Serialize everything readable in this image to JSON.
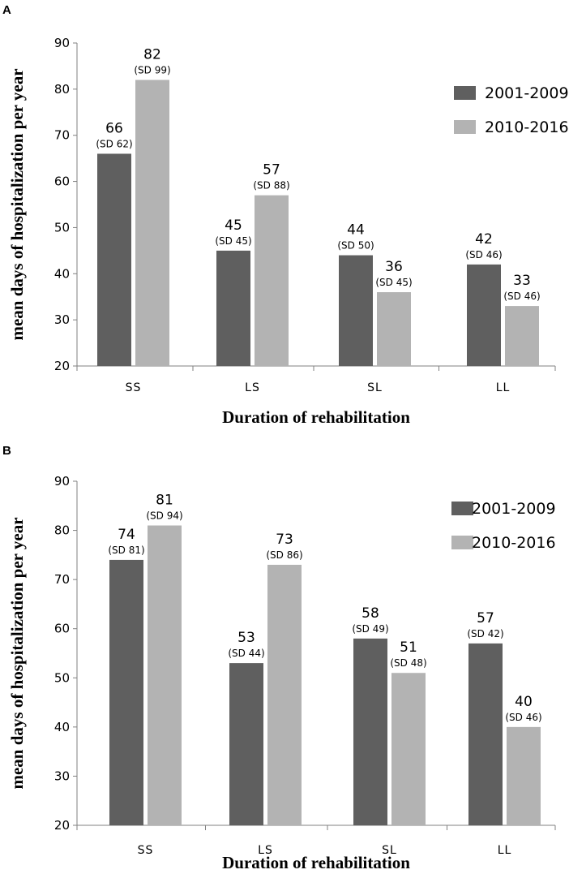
{
  "colors": {
    "series1": "#5f5f5f",
    "series2": "#b3b3b3",
    "axis": "#808080"
  },
  "chart_data": [
    {
      "panel": "A",
      "type": "bar",
      "categories": [
        "SS",
        "LS",
        "SL",
        "LL"
      ],
      "series": [
        {
          "name": "2001-2009",
          "values": [
            66,
            45,
            44,
            42
          ],
          "sd_labels": [
            "(SD 62)",
            "(SD 45)",
            "(SD 50)",
            "(SD 46)"
          ]
        },
        {
          "name": "2010-2016",
          "values": [
            82,
            57,
            36,
            33
          ],
          "sd_labels": [
            "(SD 99)",
            "(SD 88)",
            "(SD 45)",
            "(SD 46)"
          ]
        }
      ],
      "ylim": [
        20,
        90
      ],
      "yticks": [
        20,
        30,
        40,
        50,
        60,
        70,
        80,
        90
      ],
      "xlabel": "Duration of rehabilitation",
      "ylabel": "mean days  of hospitalization  per year",
      "legend": "top-right"
    },
    {
      "panel": "B",
      "type": "bar",
      "categories": [
        "SS",
        "LS",
        "SL",
        "LL"
      ],
      "series": [
        {
          "name": "2001-2009",
          "values": [
            74,
            53,
            58,
            57
          ],
          "sd_labels": [
            "(SD 81)",
            "(SD 44)",
            "(SD 49)",
            "(SD 42)"
          ]
        },
        {
          "name": "2010-2016",
          "values": [
            81,
            73,
            51,
            40
          ],
          "sd_labels": [
            "(SD 94)",
            "(SD 86)",
            "(SD 48)",
            "(SD 46)"
          ]
        }
      ],
      "ylim": [
        20,
        90
      ],
      "yticks": [
        20,
        30,
        40,
        50,
        60,
        70,
        80,
        90
      ],
      "xlabel": "Duration of rehabilitation",
      "ylabel": "mean days  of hospitalization  per year",
      "legend": "top-right"
    }
  ]
}
